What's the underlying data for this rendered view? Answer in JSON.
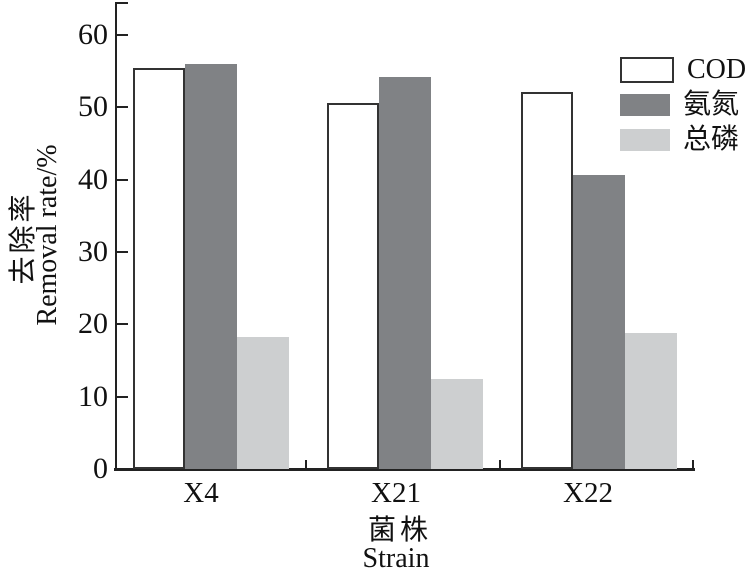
{
  "chart_data": {
    "type": "bar",
    "title": "",
    "categories": [
      "X4",
      "X21",
      "X22"
    ],
    "series": [
      {
        "key": "cod",
        "name": "COD",
        "values": [
          55.4,
          50.6,
          52.1
        ],
        "fill": "#ffffff",
        "border": "#333333"
      },
      {
        "key": "ammonia-nitrogen",
        "name": "氨氮",
        "values": [
          56.0,
          54.2,
          40.7
        ],
        "fill": "#808285",
        "border": ""
      },
      {
        "key": "total-phosphorus",
        "name": "总磷",
        "values": [
          18.3,
          12.4,
          18.8
        ],
        "fill": "#cdcfd0",
        "border": ""
      }
    ],
    "xlabel_zh": "菌株",
    "xlabel_en": "Strain",
    "ylabel_zh": "去除率",
    "ylabel_en": "Removal rate/%",
    "ylim": [
      0,
      64.6
    ],
    "yticks": [
      0,
      10,
      20,
      30,
      40,
      50,
      60
    ],
    "grid": false,
    "legend_position": "upper right",
    "colors": {
      "axis": "#222222",
      "text": "#111111",
      "cod_fill": "#ffffff",
      "cod_border": "#333333",
      "ammonia_fill": "#808285",
      "phosphorus_fill": "#cdcfd0",
      "background": "#ffffff"
    }
  }
}
